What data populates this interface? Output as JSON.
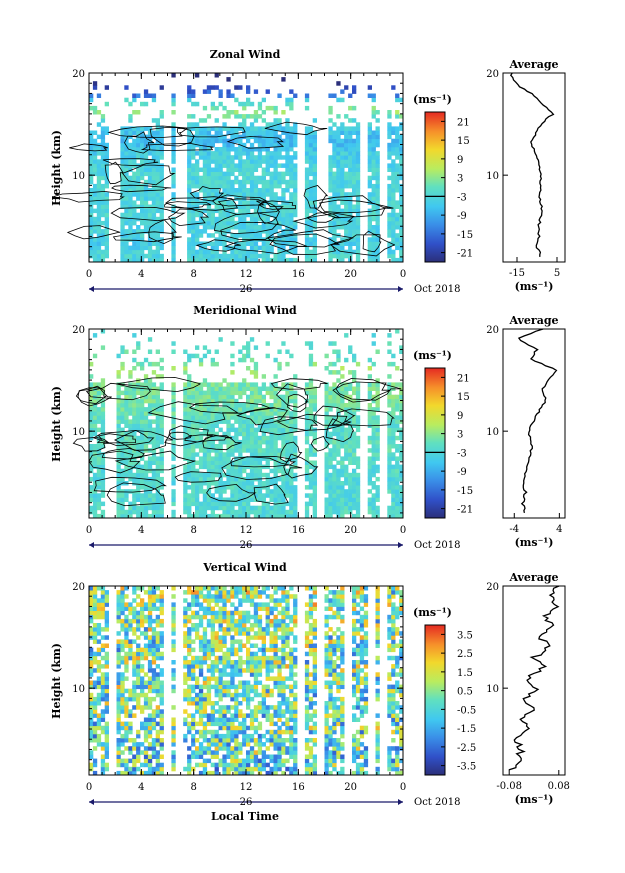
{
  "figure": {
    "xaxis_label": "Local Time",
    "date_center": "26",
    "date_right": "Oct 2018",
    "height_label": "Height (km)",
    "average_title": "Average",
    "unit_label": "(ms⁻¹)"
  },
  "chart_data": [
    {
      "type": "heatmap",
      "title": "Zonal Wind",
      "xlabel": "",
      "ylabel": "Height (km)",
      "x_ticks": [
        "0",
        "4",
        "8",
        "12",
        "16",
        "20",
        "0"
      ],
      "y_ticks": [
        "10",
        "20"
      ],
      "xlim": [
        0,
        24
      ],
      "ylim": [
        1.5,
        20
      ],
      "colorbar": {
        "label": "(ms⁻¹)",
        "ticks": [
          "21",
          "15",
          "9",
          "3",
          "-3",
          "-9",
          "-15",
          "-21"
        ],
        "range": [
          -24,
          24
        ]
      },
      "gaps_hours": [
        [
          1.7,
          2.4
        ],
        [
          5.8,
          6.2
        ],
        [
          6.8,
          7.2
        ],
        [
          16.1,
          16.5
        ],
        [
          17.6,
          18.1
        ],
        [
          20.8,
          21.2
        ],
        [
          22.2,
          22.6
        ]
      ],
      "average": {
        "title": "Average",
        "x_ticks": [
          "-15",
          "5"
        ],
        "xlim": [
          -22,
          9
        ],
        "unit": "(ms⁻¹)",
        "profile": {
          "height": [
            2,
            3,
            4,
            5,
            6,
            7,
            8,
            9,
            10,
            11,
            12,
            13,
            14,
            15,
            16,
            17,
            18,
            19,
            20
          ],
          "value": [
            -3,
            -5,
            -4,
            -4,
            -3,
            -3,
            -4,
            -3,
            -3,
            -4,
            -5,
            -8,
            -6,
            -3,
            3,
            -2,
            -8,
            -16,
            -18
          ]
        }
      }
    },
    {
      "type": "heatmap",
      "title": "Meridional Wind",
      "xlabel": "",
      "ylabel": "Height (km)",
      "x_ticks": [
        "0",
        "4",
        "8",
        "12",
        "16",
        "20",
        "0"
      ],
      "y_ticks": [
        "10",
        "20"
      ],
      "xlim": [
        0,
        24
      ],
      "ylim": [
        1.5,
        20
      ],
      "colorbar": {
        "label": "(ms⁻¹)",
        "ticks": [
          "21",
          "15",
          "9",
          "3",
          "-3",
          "-9",
          "-15",
          "-21"
        ],
        "range": [
          -24,
          24
        ]
      },
      "gaps_hours": [
        [
          1.4,
          1.8
        ],
        [
          5.8,
          6.2
        ],
        [
          6.8,
          7.1
        ],
        [
          16.1,
          16.5
        ],
        [
          17.4,
          17.8
        ],
        [
          20.8,
          21.2
        ],
        [
          22.3,
          22.6
        ]
      ],
      "average": {
        "title": "Average",
        "x_ticks": [
          "-4",
          "4"
        ],
        "xlim": [
          -6,
          5
        ],
        "unit": "(ms⁻¹)",
        "profile": {
          "height": [
            2,
            3,
            4,
            5,
            6,
            7,
            8,
            9,
            10,
            11,
            12,
            13,
            14,
            15,
            16,
            17,
            18,
            19,
            20
          ],
          "value": [
            -2,
            -2.5,
            -2,
            -2.5,
            -2,
            -1.5,
            -1,
            -1,
            -1.5,
            -0.5,
            0.5,
            1.5,
            1,
            2,
            3.5,
            -1,
            0,
            -3.5,
            1
          ]
        }
      }
    },
    {
      "type": "heatmap",
      "title": "Vertical Wind",
      "xlabel": "Local Time",
      "ylabel": "Height (km)",
      "x_ticks": [
        "0",
        "4",
        "8",
        "12",
        "16",
        "20",
        "0"
      ],
      "y_ticks": [
        "10",
        "20"
      ],
      "xlim": [
        0,
        24
      ],
      "ylim": [
        1.5,
        20
      ],
      "colorbar": {
        "label": "(ms⁻¹)",
        "ticks": [
          "3.5",
          "2.5",
          "1.5",
          "0.5",
          "-0.5",
          "-1.5",
          "-2.5",
          "-3.5"
        ],
        "range": [
          -4,
          4
        ]
      },
      "gaps_hours": [
        [
          1.5,
          1.8
        ],
        [
          5.8,
          6.3
        ],
        [
          6.8,
          7.1
        ],
        [
          16.1,
          16.4
        ],
        [
          17.5,
          17.9
        ],
        [
          19.6,
          19.9
        ],
        [
          21.3,
          21.7
        ],
        [
          22.4,
          22.7
        ]
      ],
      "average": {
        "title": "Average",
        "x_ticks": [
          "-0.08",
          "0.08"
        ],
        "xlim": [
          -0.1,
          0.1
        ],
        "unit": "(ms⁻¹)",
        "profile": {
          "height": [
            2,
            3,
            4,
            5,
            6,
            7,
            8,
            9,
            10,
            11,
            12,
            13,
            14,
            15,
            16,
            17,
            18,
            19,
            20
          ],
          "value": [
            -0.07,
            -0.05,
            -0.04,
            -0.06,
            -0.02,
            -0.04,
            0.0,
            -0.03,
            0.01,
            -0.02,
            0.03,
            0.0,
            0.05,
            0.02,
            0.06,
            0.03,
            0.07,
            0.05,
            0.08
          ]
        }
      }
    }
  ]
}
